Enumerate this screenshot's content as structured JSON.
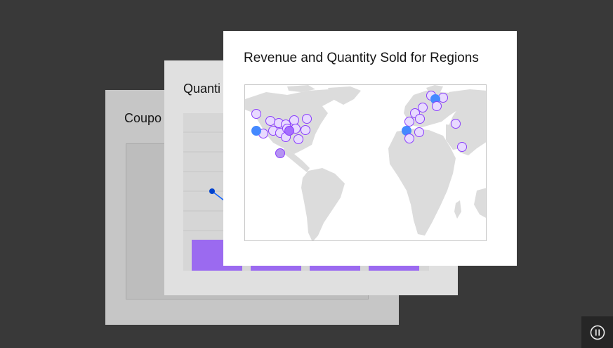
{
  "cards": {
    "back": {
      "title": "Coupo"
    },
    "middle": {
      "title": "Quanti"
    },
    "front": {
      "title": "Revenue and Quantity Sold for Regions"
    }
  },
  "middle_chart": {
    "bar_color": "#8a3ffc",
    "line_color": "#0f62fe"
  },
  "map": {
    "land_color": "#dcdcdc",
    "marker_fill": "#e8daff",
    "marker_stroke": "#8a3ffc",
    "highlight_fill": "#4589ff",
    "accent_fill": "#a56eff"
  },
  "controls": {
    "pause_icon": "pause-icon"
  }
}
